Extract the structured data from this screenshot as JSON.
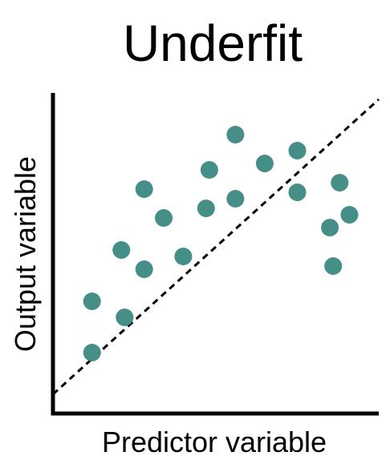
{
  "chart_data": {
    "type": "scatter",
    "title": "Underfit",
    "xlabel": "Predictor variable",
    "ylabel": "Output variable",
    "xlim": [
      0,
      10
    ],
    "ylim": [
      0,
      10
    ],
    "grid": false,
    "ticks": false,
    "point_color": "#458f88",
    "fit_line_color": "#000000",
    "fit_line_style": "dashed",
    "fit_line": {
      "x": [
        0,
        10
      ],
      "y": [
        0.6,
        9.8
      ]
    },
    "points": [
      {
        "x": 1.2,
        "y": 1.9
      },
      {
        "x": 1.2,
        "y": 3.5
      },
      {
        "x": 2.2,
        "y": 3.0
      },
      {
        "x": 2.1,
        "y": 5.1
      },
      {
        "x": 2.8,
        "y": 4.5
      },
      {
        "x": 2.8,
        "y": 7.0
      },
      {
        "x": 3.4,
        "y": 6.1
      },
      {
        "x": 4.0,
        "y": 4.9
      },
      {
        "x": 4.7,
        "y": 6.4
      },
      {
        "x": 4.8,
        "y": 7.6
      },
      {
        "x": 5.6,
        "y": 6.7
      },
      {
        "x": 5.6,
        "y": 8.7
      },
      {
        "x": 6.5,
        "y": 7.8
      },
      {
        "x": 7.5,
        "y": 8.2
      },
      {
        "x": 7.5,
        "y": 6.9
      },
      {
        "x": 8.5,
        "y": 5.8
      },
      {
        "x": 8.6,
        "y": 4.6
      },
      {
        "x": 8.8,
        "y": 7.2
      },
      {
        "x": 9.1,
        "y": 6.2
      }
    ]
  }
}
